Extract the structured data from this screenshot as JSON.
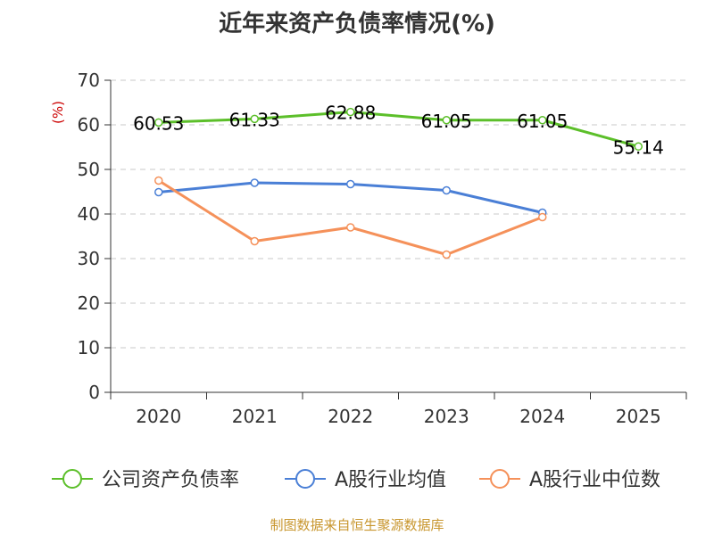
{
  "chart_data": {
    "type": "line",
    "title": "近年来资产负债率情况(%)",
    "ylabel": "(%)",
    "xlabel": "",
    "categories": [
      "2020",
      "2021",
      "2022",
      "2023",
      "2024",
      "2025"
    ],
    "ylim": [
      0,
      70
    ],
    "yticks": [
      0,
      10,
      20,
      30,
      40,
      50,
      60,
      70
    ],
    "grid": true,
    "legend_position": "bottom",
    "series": [
      {
        "name": "公司资产负债率",
        "color": "#5cbf2a",
        "values": [
          60.53,
          61.33,
          62.88,
          61.05,
          61.05,
          55.14
        ],
        "labels": [
          "60.53",
          "61.33",
          "62.88",
          "61.05",
          "61.05",
          "55.14"
        ]
      },
      {
        "name": "A股行业均值",
        "color": "#4a7fd6",
        "values": [
          44.9,
          47.0,
          46.7,
          45.3,
          40.3,
          null
        ]
      },
      {
        "name": "A股行业中位数",
        "color": "#f5915a",
        "values": [
          47.5,
          33.9,
          37.0,
          30.9,
          39.3,
          null
        ]
      }
    ]
  },
  "source_note": "制图数据来自恒生聚源数据库"
}
